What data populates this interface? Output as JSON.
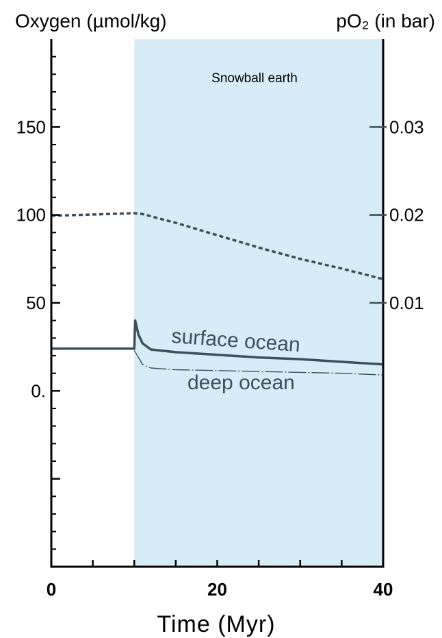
{
  "chart_data": {
    "type": "line",
    "title_left": "Oxygen (µmol/kg)",
    "title_right": "pO₂ (in bar)",
    "xlabel": "Time (Myr)",
    "xlim": [
      0,
      40
    ],
    "ylim": [
      -100,
      200
    ],
    "y2lim": [
      -0.02,
      0.04
    ],
    "x_tick_labels": [
      {
        "value": 0,
        "label": "0"
      },
      {
        "value": 20,
        "label": "20"
      },
      {
        "value": 40,
        "label": "40"
      }
    ],
    "x_minor_ticks": [
      5,
      10,
      15,
      25,
      30,
      35
    ],
    "y_tick_labels": [
      {
        "value": 150,
        "label": "150"
      },
      {
        "value": 100,
        "label": "100"
      },
      {
        "value": 50,
        "label": "50"
      },
      {
        "value": 0,
        "label": "0."
      }
    ],
    "y_major_ticks": [
      -50,
      0,
      50,
      100,
      150
    ],
    "y2_tick_labels": [
      {
        "value": 0.03,
        "label": "0.03"
      },
      {
        "value": 0.02,
        "label": "0.02"
      },
      {
        "value": 0.01,
        "label": "0.01"
      }
    ],
    "shaded_region": {
      "label": "Snowball earth",
      "x_start": 10,
      "x_end": 40,
      "color": "#d6edf8"
    },
    "series": [
      {
        "axis": "right",
        "style": "dashed",
        "color": "#3b4f5c",
        "x": [
          0,
          10,
          11,
          15,
          20,
          25,
          30,
          35,
          40
        ],
        "y": [
          0.0199,
          0.0202,
          0.0201,
          0.0191,
          0.0177,
          0.0163,
          0.015,
          0.0139,
          0.0127
        ]
      },
      {
        "name": "surface ocean",
        "axis": "left",
        "style": "solid",
        "color": "#3b4f5c",
        "x": [
          0,
          10,
          10.1,
          10.5,
          11,
          12,
          15,
          20,
          25,
          30,
          35,
          40
        ],
        "y": [
          24,
          24,
          40,
          32,
          27,
          23.5,
          22,
          20.5,
          19,
          18,
          16.5,
          15
        ]
      },
      {
        "name": "deep ocean",
        "axis": "left",
        "style": "dashdot",
        "color": "#3b4f5c",
        "x": [
          10,
          10.5,
          11,
          12,
          15,
          20,
          25,
          30,
          35,
          40
        ],
        "y": [
          23,
          19,
          15,
          13,
          12,
          11.5,
          11,
          10.5,
          10,
          9
        ]
      }
    ],
    "colors": {
      "axis": "#000000",
      "line": "#3b4f5c",
      "shade": "#d6edf8"
    }
  }
}
